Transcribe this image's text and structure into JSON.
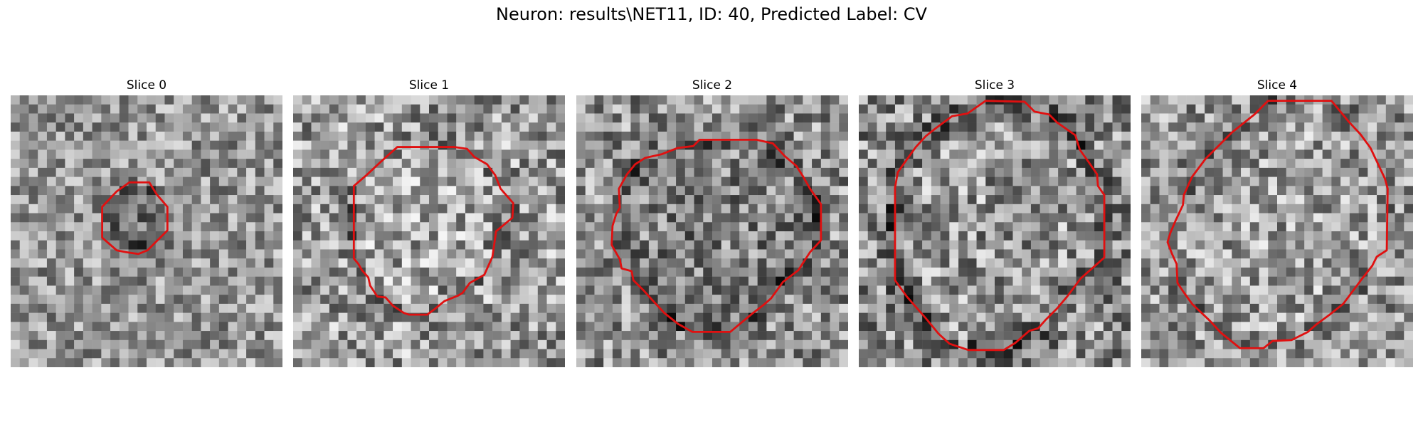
{
  "figure": {
    "title": "Neuron: results\\NET11, ID: 40, Predicted Label: CV"
  },
  "panels": [
    {
      "title": "Slice 0"
    },
    {
      "title": "Slice 1"
    },
    {
      "title": "Slice 2"
    },
    {
      "title": "Slice 3"
    },
    {
      "title": "Slice 4"
    }
  ],
  "colors": {
    "background": "#ffffff",
    "contour": "#e01010",
    "colormap": "gray"
  }
}
